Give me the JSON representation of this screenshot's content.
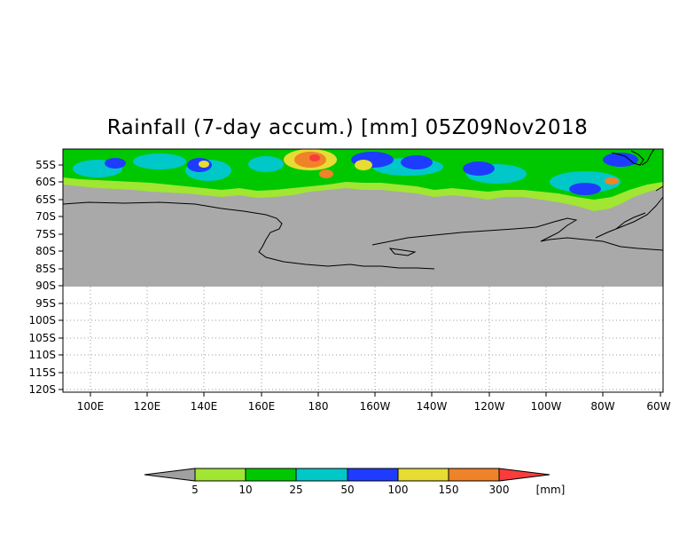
{
  "title": "Rainfall (7-day accum.) [mm] 05Z09Nov2018",
  "latitude_labels": [
    "55S",
    "60S",
    "65S",
    "70S",
    "75S",
    "80S",
    "85S",
    "90S",
    "95S",
    "100S",
    "105S",
    "110S",
    "115S",
    "120S"
  ],
  "longitude_labels": [
    "100E",
    "120E",
    "140E",
    "160E",
    "180",
    "160W",
    "140W",
    "120W",
    "100W",
    "80W",
    "60W"
  ],
  "colorbar": {
    "bin_labels": [
      "5",
      "10",
      "25",
      "50",
      "100",
      "150",
      "300"
    ],
    "unit": "[mm]",
    "colors": [
      "#a0a0a0",
      "#a0e632",
      "#00c800",
      "#00c8c8",
      "#1e3cff",
      "#e6dc32",
      "#f08228",
      "#fa3c3c"
    ]
  },
  "colors": {
    "land_missing": "#a9a9a9",
    "coastline": "#000000",
    "grid": "#999999"
  }
}
